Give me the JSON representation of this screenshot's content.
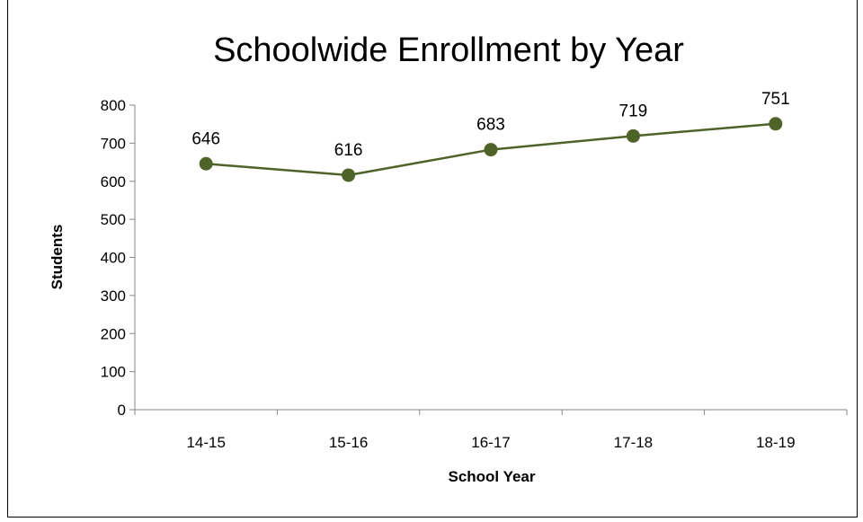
{
  "chart_data": {
    "type": "line",
    "title": "Schoolwide Enrollment by Year",
    "xlabel": "School Year",
    "ylabel": "Students",
    "categories": [
      "14-15",
      "15-16",
      "16-17",
      "17-18",
      "18-19"
    ],
    "series": [
      {
        "values": [
          646,
          616,
          683,
          719,
          751
        ],
        "color": "#4F6228"
      }
    ],
    "data_labels": [
      "646",
      "616",
      "683",
      "719",
      "751"
    ],
    "ylim": [
      0,
      800
    ],
    "yticks": [
      0,
      100,
      200,
      300,
      400,
      500,
      600,
      700,
      800
    ],
    "ytick_labels": [
      "0",
      "100",
      "200",
      "300",
      "400",
      "500",
      "600",
      "700",
      "800"
    ],
    "grid": false,
    "legend": "none"
  }
}
